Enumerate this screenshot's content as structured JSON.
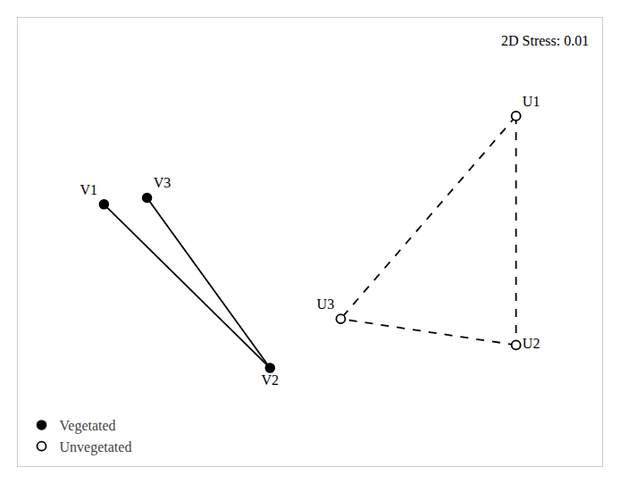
{
  "chart_data": {
    "type": "scatter",
    "title": "2D Stress: 0.01",
    "series": [
      {
        "name": "Vegetated",
        "marker": "filled",
        "line_style": "solid",
        "color": "#000000",
        "labels": [
          "V1",
          "V3",
          "V2"
        ],
        "x": [
          -0.72,
          -0.58,
          -0.18
        ],
        "y": [
          0.28,
          0.3,
          -0.22
        ],
        "edges": [
          [
            "V1",
            "V2"
          ],
          [
            "V3",
            "V2"
          ]
        ]
      },
      {
        "name": "Unvegetated",
        "marker": "open",
        "line_style": "dashed",
        "color": "#000000",
        "labels": [
          "U1",
          "U2",
          "U3"
        ],
        "x": [
          0.62,
          0.62,
          0.05
        ],
        "y": [
          0.55,
          -0.15,
          -0.07
        ],
        "edges": [
          [
            "U1",
            "U2"
          ],
          [
            "U1",
            "U3"
          ],
          [
            "U2",
            "U3"
          ]
        ]
      }
    ],
    "xlim": [
      -1.0,
      0.9
    ],
    "ylim": [
      -0.52,
      0.85
    ],
    "xticks": [],
    "yticks": [],
    "tick_labels": false,
    "grid": false,
    "legend": "lower left"
  }
}
